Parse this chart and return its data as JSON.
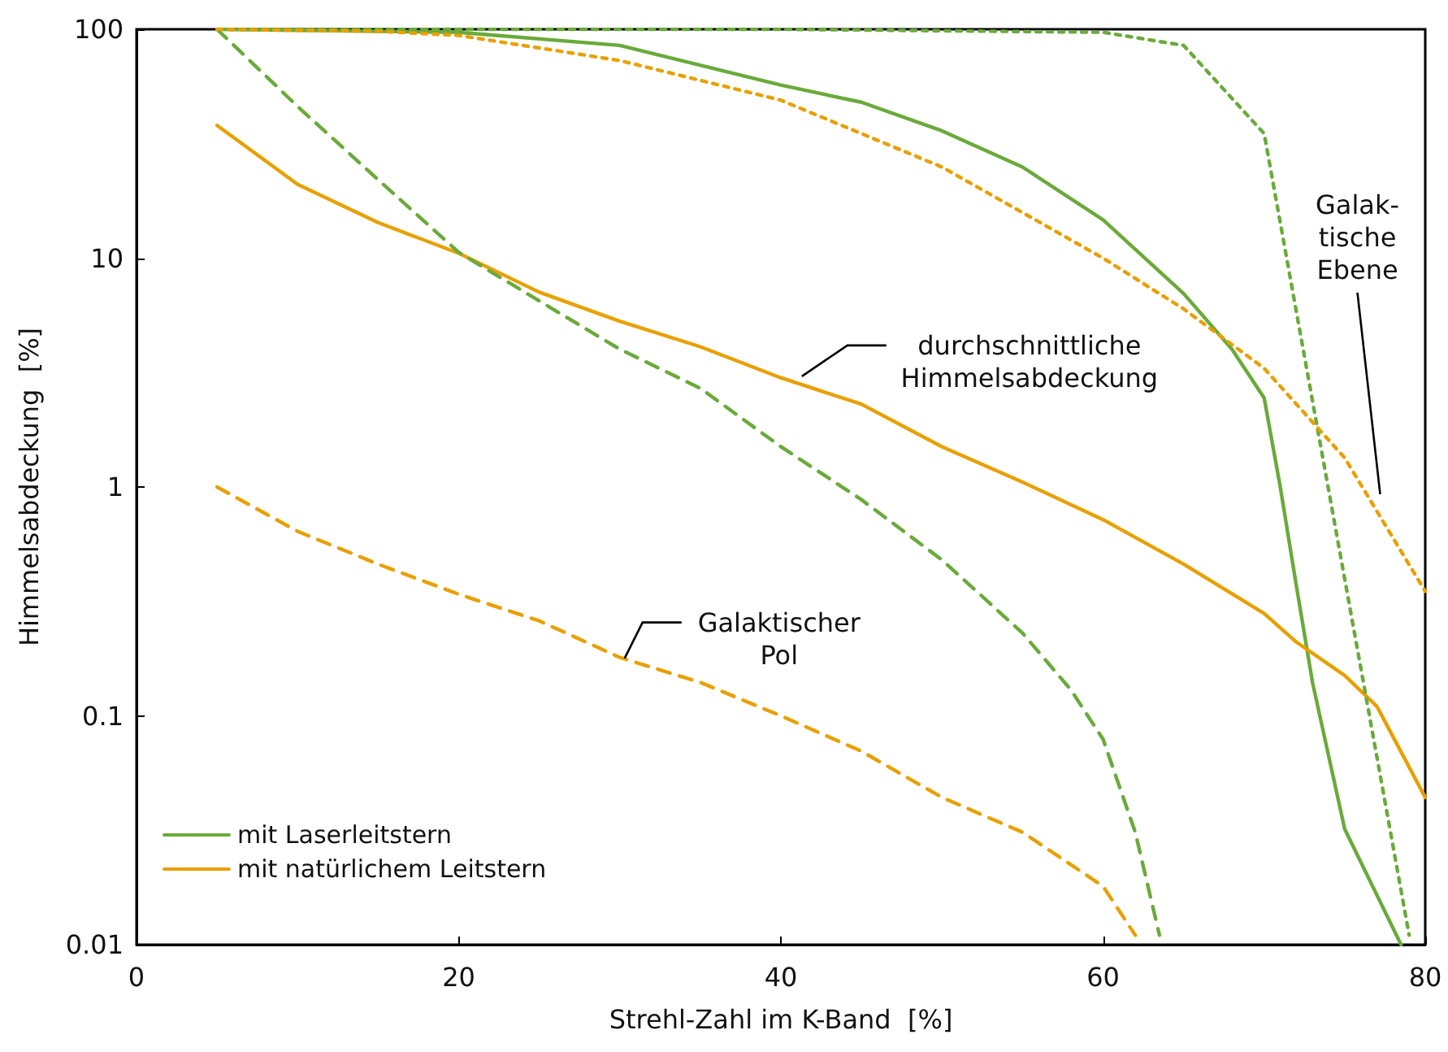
{
  "chart_data": {
    "type": "line",
    "xlabel": "Strehl-Zahl im K-Band  [%]",
    "ylabel": "Himmelsabdeckung  [%]",
    "log": "y",
    "xlim": [
      0,
      80
    ],
    "xticks": [
      0,
      20,
      40,
      60,
      80
    ],
    "ylim": [
      0.01,
      100
    ],
    "yticks": [
      0.01,
      0.1,
      1,
      10,
      100
    ],
    "grid": false,
    "legend": "bottom left",
    "marker": "none",
    "series": [
      {
        "name": "mit Laserleitstern",
        "color": "#6aaa3a",
        "line_style": "solid",
        "x": [
          5,
          20,
          30,
          40,
          45,
          50,
          55,
          60,
          65,
          68,
          70,
          71,
          72,
          73,
          75,
          78.5
        ],
        "values": [
          100,
          97,
          85,
          57,
          48,
          36,
          25,
          14.7,
          7,
          4,
          2.45,
          1,
          0.37,
          0.14,
          0.032,
          0.01
        ]
      },
      {
        "name": "mit natürlichem Leitstern",
        "color": "#e8a000",
        "line_style": "solid",
        "x": [
          5,
          10,
          15,
          20,
          25,
          30,
          35,
          40,
          45,
          50,
          55,
          60,
          65,
          70,
          72,
          75,
          77,
          80
        ],
        "values": [
          38,
          21,
          14.3,
          10.5,
          7.1,
          5.3,
          4.1,
          3,
          2.3,
          1.5,
          1.05,
          0.72,
          0.46,
          0.28,
          0.21,
          0.15,
          0.11,
          0.044
        ]
      },
      {
        "color": "#6aaa3a",
        "line_style": "dashed",
        "x": [
          5,
          10,
          15,
          20,
          25,
          30,
          35,
          40,
          45,
          50,
          55,
          58,
          60,
          62,
          63.5
        ],
        "values": [
          100,
          46,
          22,
          10.6,
          6.5,
          4,
          2.7,
          1.5,
          0.88,
          0.48,
          0.23,
          0.13,
          0.079,
          0.031,
          0.011
        ]
      },
      {
        "color": "#e8a000",
        "line_style": "dashed",
        "x": [
          5,
          10,
          15,
          20,
          25,
          30,
          35,
          40,
          45,
          50,
          55,
          60,
          62
        ],
        "values": [
          1,
          0.64,
          0.46,
          0.34,
          0.26,
          0.18,
          0.14,
          0.1,
          0.07,
          0.044,
          0.031,
          0.018,
          0.011
        ]
      },
      {
        "color": "#6aaa3a",
        "line_style": "dotted",
        "x": [
          5,
          20,
          40,
          60,
          65,
          70,
          79
        ],
        "values": [
          100,
          100,
          100,
          97,
          85,
          35,
          0.011
        ]
      },
      {
        "color": "#e8a000",
        "line_style": "dotted",
        "x": [
          5,
          15,
          20,
          30,
          40,
          50,
          60,
          65,
          70,
          75,
          80
        ],
        "values": [
          100,
          98,
          94,
          73,
          49,
          25,
          10,
          6,
          3.3,
          1.34,
          0.35
        ]
      }
    ],
    "annotations": [
      {
        "text": "durchschnittliche\nHimmelsabdeckung",
        "x": 41,
        "y": 2.9
      },
      {
        "text": "Galaktischer\nPol",
        "x": 30,
        "y": 0.17
      },
      {
        "text": "Galak-\ntische\nEbene",
        "x": 77,
        "y": 0.9
      }
    ]
  }
}
